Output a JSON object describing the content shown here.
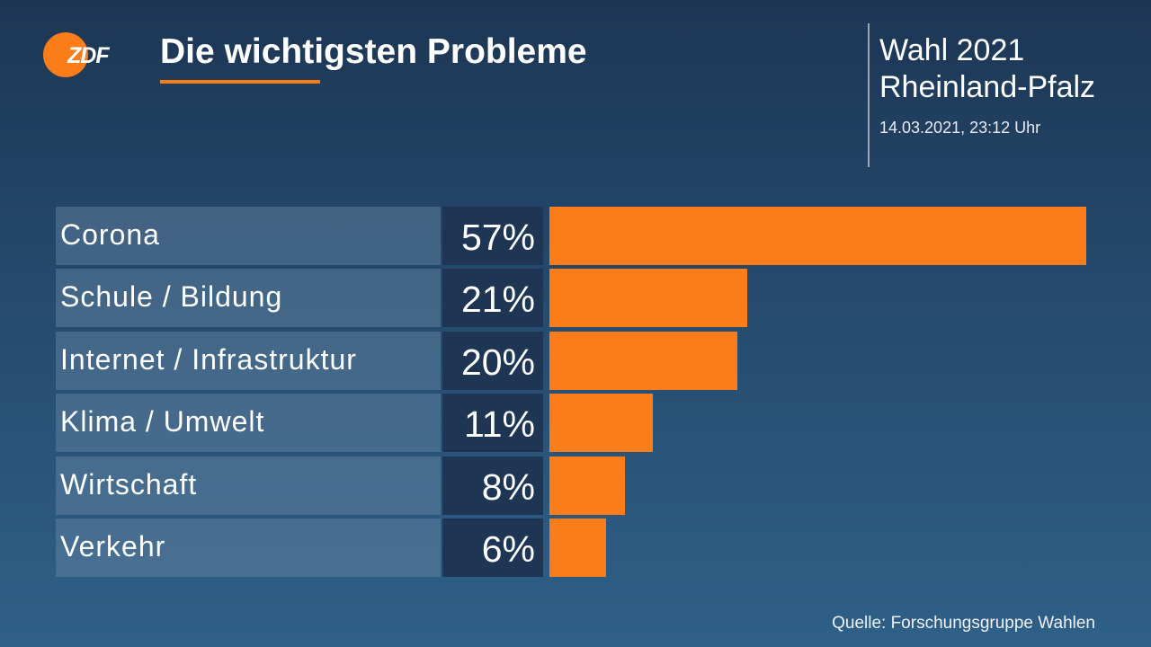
{
  "brand": {
    "logo_text": "ZDF",
    "accent_color": "#fa7d19"
  },
  "header": {
    "title": "Die wichtigsten Probleme",
    "election_line1": "Wahl 2021",
    "election_line2": "Rheinland-Pfalz",
    "timestamp": "14.03.2021, 23:12 Uhr"
  },
  "chart_data": {
    "type": "bar",
    "orientation": "horizontal",
    "title": "Die wichtigsten Probleme",
    "categories": [
      "Corona",
      "Schule / Bildung",
      "Internet / Infrastruktur",
      "Klima / Umwelt",
      "Wirtschaft",
      "Verkehr"
    ],
    "values": [
      57,
      21,
      20,
      11,
      8,
      6
    ],
    "value_labels": [
      "57%",
      "21%",
      "20%",
      "11%",
      "8%",
      "6%"
    ],
    "unit": "%",
    "bar_color": "#fa7d19",
    "grid": false,
    "legend": "none"
  },
  "footer": {
    "source": "Quelle: Forschungsgruppe Wahlen"
  }
}
